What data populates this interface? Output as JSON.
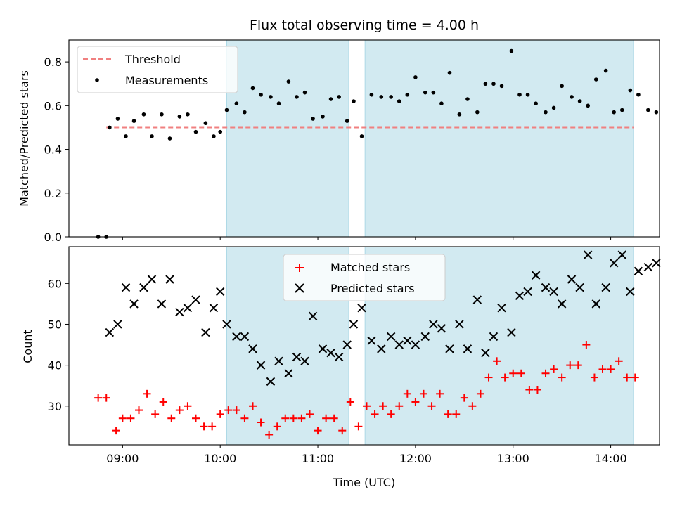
{
  "chart_data": [
    {
      "type": "scatter",
      "title": "Flux total observing time = 4.00 h",
      "ylabel": "Matched/Predicted stars",
      "ylim": [
        0,
        0.9
      ],
      "xlim_hours": [
        8.45,
        14.5
      ],
      "yticks": [
        0.0,
        0.2,
        0.4,
        0.6,
        0.8
      ],
      "ytick_labels": [
        "0.0",
        "0.2",
        "0.4",
        "0.6",
        "0.8"
      ],
      "shaded_intervals": [
        [
          "10:04",
          "11:19"
        ],
        [
          "11:29",
          "14:14"
        ]
      ],
      "shade_color": "#add8e6",
      "legend": {
        "placement": "top-left",
        "threshold_label": "Threshold",
        "measurements_label": "Measurements"
      },
      "threshold": {
        "y": 0.5,
        "x_start": "08:50",
        "x_end": "14:14",
        "color": "#f08080"
      },
      "series": [
        {
          "name": "Measurements",
          "marker": "dot",
          "color": "#000000",
          "points": [
            [
              "08:45",
              0.0
            ],
            [
              "08:50",
              0.0
            ],
            [
              "08:52",
              0.5
            ],
            [
              "08:57",
              0.54
            ],
            [
              "09:02",
              0.46
            ],
            [
              "09:07",
              0.53
            ],
            [
              "09:13",
              0.56
            ],
            [
              "09:18",
              0.46
            ],
            [
              "09:24",
              0.56
            ],
            [
              "09:29",
              0.45
            ],
            [
              "09:35",
              0.55
            ],
            [
              "09:40",
              0.56
            ],
            [
              "09:45",
              0.48
            ],
            [
              "09:51",
              0.52
            ],
            [
              "09:56",
              0.46
            ],
            [
              "10:00",
              0.48
            ],
            [
              "10:04",
              0.58
            ],
            [
              "10:10",
              0.61
            ],
            [
              "10:15",
              0.57
            ],
            [
              "10:20",
              0.68
            ],
            [
              "10:25",
              0.65
            ],
            [
              "10:31",
              0.64
            ],
            [
              "10:36",
              0.61
            ],
            [
              "10:42",
              0.71
            ],
            [
              "10:47",
              0.64
            ],
            [
              "10:52",
              0.66
            ],
            [
              "10:57",
              0.54
            ],
            [
              "11:03",
              0.55
            ],
            [
              "11:08",
              0.63
            ],
            [
              "11:13",
              0.64
            ],
            [
              "11:18",
              0.53
            ],
            [
              "11:22",
              0.62
            ],
            [
              "11:27",
              0.46
            ],
            [
              "11:33",
              0.65
            ],
            [
              "11:39",
              0.64
            ],
            [
              "11:45",
              0.64
            ],
            [
              "11:50",
              0.62
            ],
            [
              "11:55",
              0.65
            ],
            [
              "12:00",
              0.73
            ],
            [
              "12:06",
              0.66
            ],
            [
              "12:11",
              0.66
            ],
            [
              "12:16",
              0.61
            ],
            [
              "12:21",
              0.75
            ],
            [
              "12:27",
              0.56
            ],
            [
              "12:32",
              0.63
            ],
            [
              "12:38",
              0.57
            ],
            [
              "12:43",
              0.7
            ],
            [
              "12:48",
              0.7
            ],
            [
              "12:53",
              0.69
            ],
            [
              "12:59",
              0.85
            ],
            [
              "13:04",
              0.65
            ],
            [
              "13:09",
              0.65
            ],
            [
              "13:14",
              0.61
            ],
            [
              "13:20",
              0.57
            ],
            [
              "13:25",
              0.59
            ],
            [
              "13:30",
              0.69
            ],
            [
              "13:36",
              0.64
            ],
            [
              "13:41",
              0.62
            ],
            [
              "13:46",
              0.6
            ],
            [
              "13:51",
              0.72
            ],
            [
              "13:57",
              0.76
            ],
            [
              "14:02",
              0.57
            ],
            [
              "14:07",
              0.58
            ],
            [
              "14:12",
              0.67
            ],
            [
              "14:17",
              0.65
            ],
            [
              "14:23",
              0.58
            ],
            [
              "14:28",
              0.57
            ]
          ]
        }
      ]
    },
    {
      "type": "scatter",
      "xlabel": "Time (UTC)",
      "ylabel": "Count",
      "ylim": [
        20.5,
        69
      ],
      "xlim_hours": [
        8.45,
        14.5
      ],
      "yticks": [
        30,
        40,
        50,
        60
      ],
      "ytick_labels": [
        "30",
        "40",
        "50",
        "60"
      ],
      "xtick_labels": [
        "09:00",
        "10:00",
        "11:00",
        "12:00",
        "13:00",
        "14:00"
      ],
      "shaded_intervals": [
        [
          "10:04",
          "11:19"
        ],
        [
          "11:29",
          "14:14"
        ]
      ],
      "shade_color": "#add8e6",
      "legend": {
        "placement": "top-center",
        "matched_label": "Matched stars",
        "predicted_label": "Predicted stars"
      },
      "series": [
        {
          "name": "Matched stars",
          "marker": "plus",
          "color": "#ff0000",
          "points": [
            [
              "08:45",
              32
            ],
            [
              "08:50",
              32
            ],
            [
              "08:56",
              24
            ],
            [
              "09:00",
              27
            ],
            [
              "09:05",
              27
            ],
            [
              "09:10",
              29
            ],
            [
              "09:15",
              33
            ],
            [
              "09:20",
              28
            ],
            [
              "09:25",
              31
            ],
            [
              "09:30",
              27
            ],
            [
              "09:35",
              29
            ],
            [
              "09:40",
              30
            ],
            [
              "09:45",
              27
            ],
            [
              "09:50",
              25
            ],
            [
              "09:55",
              25
            ],
            [
              "10:00",
              28
            ],
            [
              "10:05",
              29
            ],
            [
              "10:10",
              29
            ],
            [
              "10:15",
              27
            ],
            [
              "10:20",
              30
            ],
            [
              "10:25",
              26
            ],
            [
              "10:30",
              23
            ],
            [
              "10:35",
              25
            ],
            [
              "10:40",
              27
            ],
            [
              "10:45",
              27
            ],
            [
              "10:50",
              27
            ],
            [
              "10:55",
              28
            ],
            [
              "11:00",
              24
            ],
            [
              "11:05",
              27
            ],
            [
              "11:10",
              27
            ],
            [
              "11:15",
              24
            ],
            [
              "11:20",
              31
            ],
            [
              "11:25",
              25
            ],
            [
              "11:30",
              30
            ],
            [
              "11:35",
              28
            ],
            [
              "11:40",
              30
            ],
            [
              "11:45",
              28
            ],
            [
              "11:50",
              30
            ],
            [
              "11:55",
              33
            ],
            [
              "12:00",
              31
            ],
            [
              "12:05",
              33
            ],
            [
              "12:10",
              30
            ],
            [
              "12:15",
              33
            ],
            [
              "12:20",
              28
            ],
            [
              "12:25",
              28
            ],
            [
              "12:30",
              32
            ],
            [
              "12:35",
              30
            ],
            [
              "12:40",
              33
            ],
            [
              "12:45",
              37
            ],
            [
              "12:50",
              41
            ],
            [
              "12:55",
              37
            ],
            [
              "13:00",
              38
            ],
            [
              "13:05",
              38
            ],
            [
              "13:10",
              34
            ],
            [
              "13:15",
              34
            ],
            [
              "13:20",
              38
            ],
            [
              "13:25",
              39
            ],
            [
              "13:30",
              37
            ],
            [
              "13:35",
              40
            ],
            [
              "13:40",
              40
            ],
            [
              "13:45",
              45
            ],
            [
              "13:50",
              37
            ],
            [
              "13:55",
              39
            ],
            [
              "14:00",
              39
            ],
            [
              "14:05",
              41
            ],
            [
              "14:10",
              37
            ],
            [
              "14:15",
              37
            ]
          ]
        },
        {
          "name": "Predicted stars",
          "marker": "x",
          "color": "#000000",
          "points": [
            [
              "08:52",
              48
            ],
            [
              "08:57",
              50
            ],
            [
              "09:02",
              59
            ],
            [
              "09:07",
              55
            ],
            [
              "09:13",
              59
            ],
            [
              "09:18",
              61
            ],
            [
              "09:24",
              55
            ],
            [
              "09:29",
              61
            ],
            [
              "09:35",
              53
            ],
            [
              "09:40",
              54
            ],
            [
              "09:45",
              56
            ],
            [
              "09:51",
              48
            ],
            [
              "09:56",
              54
            ],
            [
              "10:00",
              58
            ],
            [
              "10:04",
              50
            ],
            [
              "10:10",
              47
            ],
            [
              "10:15",
              47
            ],
            [
              "10:20",
              44
            ],
            [
              "10:25",
              40
            ],
            [
              "10:31",
              36
            ],
            [
              "10:36",
              41
            ],
            [
              "10:42",
              38
            ],
            [
              "10:47",
              42
            ],
            [
              "10:52",
              41
            ],
            [
              "10:57",
              52
            ],
            [
              "11:03",
              44
            ],
            [
              "11:08",
              43
            ],
            [
              "11:13",
              42
            ],
            [
              "11:18",
              45
            ],
            [
              "11:22",
              50
            ],
            [
              "11:27",
              54
            ],
            [
              "11:33",
              46
            ],
            [
              "11:39",
              44
            ],
            [
              "11:45",
              47
            ],
            [
              "11:50",
              45
            ],
            [
              "11:55",
              46
            ],
            [
              "12:00",
              45
            ],
            [
              "12:06",
              47
            ],
            [
              "12:11",
              50
            ],
            [
              "12:16",
              49
            ],
            [
              "12:21",
              44
            ],
            [
              "12:27",
              50
            ],
            [
              "12:32",
              44
            ],
            [
              "12:38",
              56
            ],
            [
              "12:43",
              43
            ],
            [
              "12:48",
              47
            ],
            [
              "12:53",
              54
            ],
            [
              "12:59",
              48
            ],
            [
              "13:04",
              57
            ],
            [
              "13:09",
              58
            ],
            [
              "13:14",
              62
            ],
            [
              "13:20",
              59
            ],
            [
              "13:25",
              58
            ],
            [
              "13:30",
              55
            ],
            [
              "13:36",
              61
            ],
            [
              "13:41",
              59
            ],
            [
              "13:46",
              67
            ],
            [
              "13:51",
              55
            ],
            [
              "13:57",
              59
            ],
            [
              "14:02",
              65
            ],
            [
              "14:07",
              67
            ],
            [
              "14:12",
              58
            ],
            [
              "14:17",
              63
            ],
            [
              "14:23",
              64
            ],
            [
              "14:28",
              65
            ]
          ]
        }
      ]
    }
  ]
}
